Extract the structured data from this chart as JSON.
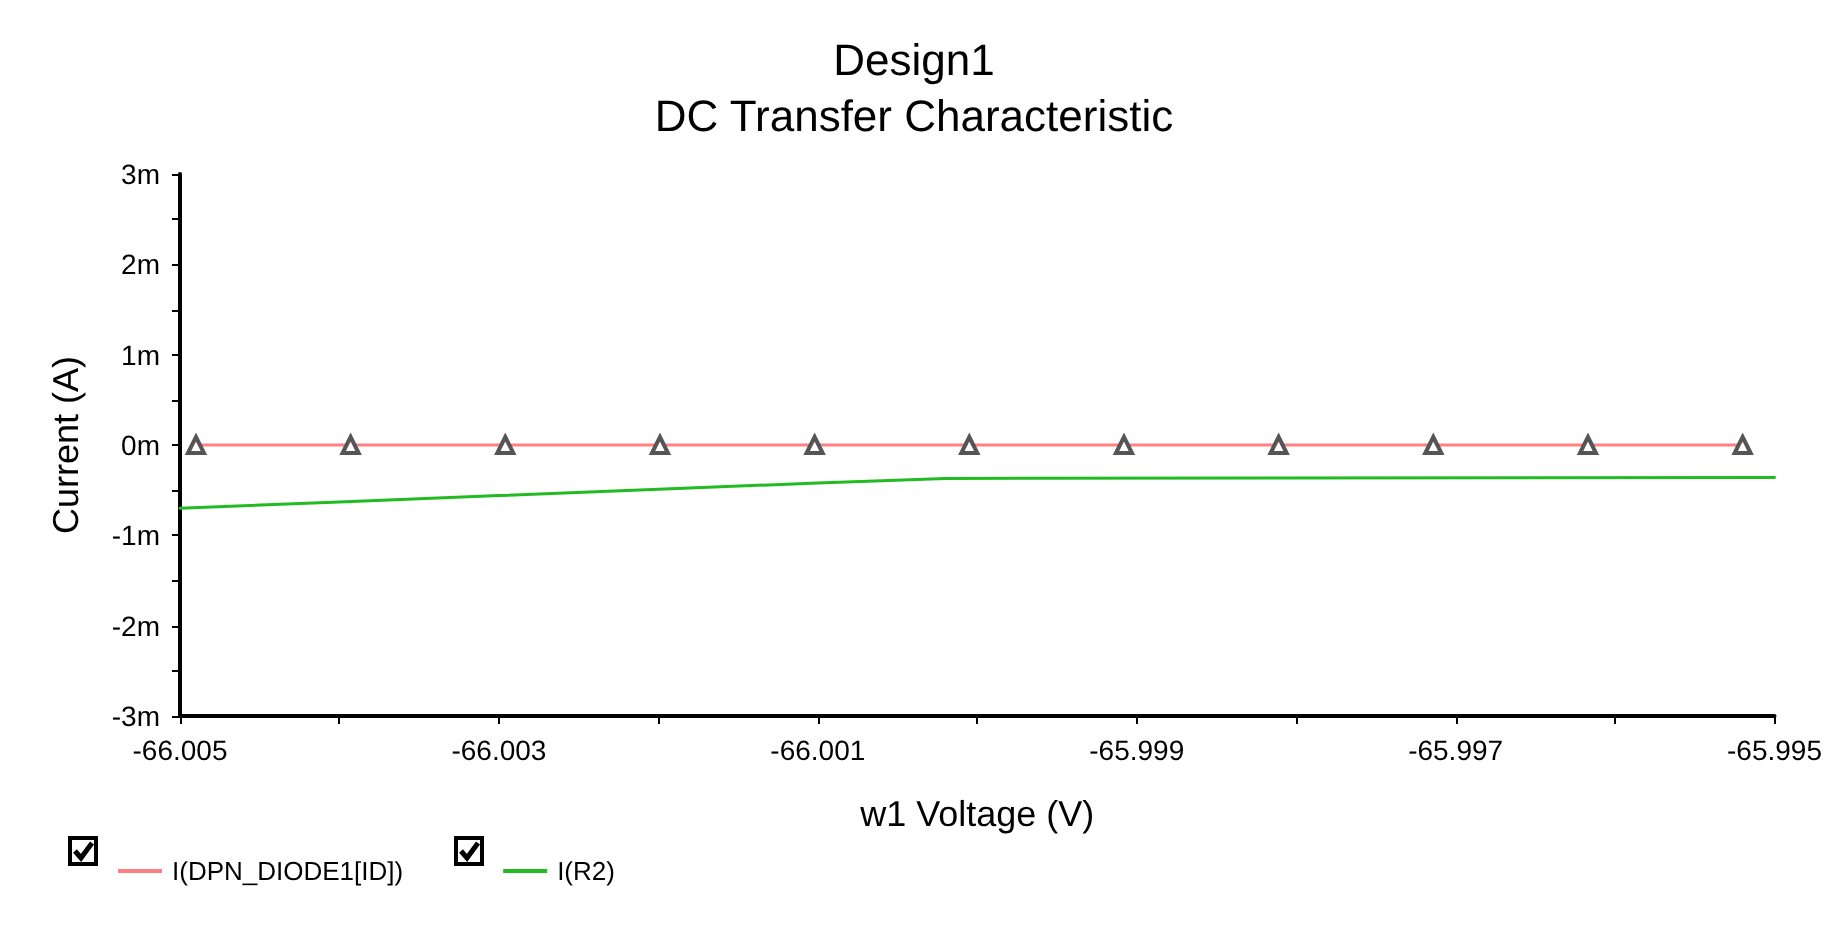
{
  "chart_data": {
    "type": "line",
    "title": "Design1",
    "subtitle": "DC Transfer Characteristic",
    "xlabel": "w1 Voltage (V)",
    "ylabel": "Current (A)",
    "xlim": [
      -66.005,
      -65.995
    ],
    "xticks": [
      {
        "value": -66.005,
        "label": "-66.005"
      },
      {
        "value": -66.004,
        "label": null
      },
      {
        "value": -66.003,
        "label": "-66.003"
      },
      {
        "value": -66.002,
        "label": null
      },
      {
        "value": -66.001,
        "label": "-66.001"
      },
      {
        "value": -66.0,
        "label": null
      },
      {
        "value": -65.999,
        "label": "-65.999"
      },
      {
        "value": -65.998,
        "label": null
      },
      {
        "value": -65.997,
        "label": "-65.997"
      },
      {
        "value": -65.996,
        "label": null
      },
      {
        "value": -65.995,
        "label": "-65.995"
      }
    ],
    "ylim": [
      -3,
      3
    ],
    "yticks": [
      {
        "value": -3,
        "label": "-3m"
      },
      {
        "value": -2.5,
        "label": null
      },
      {
        "value": -2,
        "label": "-2m"
      },
      {
        "value": -1.5,
        "label": null
      },
      {
        "value": -1,
        "label": "-1m"
      },
      {
        "value": -0.5,
        "label": null
      },
      {
        "value": 0,
        "label": "0m"
      },
      {
        "value": 0.5,
        "label": null
      },
      {
        "value": 1,
        "label": "1m"
      },
      {
        "value": 1.5,
        "label": null
      },
      {
        "value": 2,
        "label": "2m"
      },
      {
        "value": 2.5,
        "label": null
      },
      {
        "value": 3,
        "label": "3m"
      }
    ],
    "grid": false,
    "legend": "bottom left",
    "series": [
      {
        "name": "I(DPN_DIODE1[ID])",
        "color": "#ff8080",
        "marker": "triangle",
        "x": [
          -66.0049,
          -66.00393,
          -66.00296,
          -66.00199,
          -66.00102,
          -66.00005,
          -65.99908,
          -65.99811,
          -65.99714,
          -65.99617,
          -65.9952
        ],
        "values": [
          0,
          0,
          0,
          0,
          0,
          0,
          0,
          0,
          0,
          0,
          0
        ]
      },
      {
        "name": "I(R2)",
        "color": "#22bb22",
        "marker": "none",
        "x": [
          -66.005,
          -66.004,
          -66.003,
          -66.002,
          -66.001,
          -66.0002,
          -65.995
        ],
        "values": [
          -0.7,
          -0.63,
          -0.56,
          -0.49,
          -0.42,
          -0.37,
          -0.36
        ]
      }
    ]
  }
}
